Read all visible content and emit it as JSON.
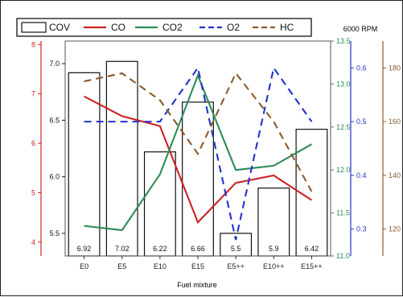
{
  "chart_data": {
    "type": "bar",
    "title": "6000 RPM",
    "xlabel": "Fuel mixture",
    "categories": [
      "E0",
      "E5",
      "E10",
      "E15",
      "E5++",
      "E10++",
      "E15++"
    ],
    "bar_labels": [
      "6.92",
      "7.02",
      "6.22",
      "6.66",
      "5.5",
      "5.9",
      "6.42"
    ],
    "series": [
      {
        "name": "COV",
        "kind": "bar",
        "axis": "cov",
        "values": [
          6.92,
          7.02,
          6.22,
          6.66,
          5.5,
          5.9,
          6.42
        ]
      },
      {
        "name": "CO",
        "kind": "line",
        "axis": "co",
        "color": "#cc2222",
        "dash": "solid",
        "values": [
          6.95,
          6.55,
          6.35,
          4.4,
          5.2,
          5.35,
          4.85
        ]
      },
      {
        "name": "CO2",
        "kind": "line",
        "axis": "co2",
        "color": "#2e8b57",
        "dash": "solid",
        "values": [
          11.35,
          11.3,
          11.95,
          13.1,
          12.0,
          12.05,
          12.3
        ]
      },
      {
        "name": "O2",
        "kind": "line",
        "axis": "o2",
        "color": "#2233cc",
        "dash": "dashed",
        "values": [
          0.5,
          0.5,
          0.5,
          0.6,
          0.28,
          0.6,
          0.5
        ]
      },
      {
        "name": "HC",
        "kind": "line",
        "axis": "hc",
        "color": "#8b5a2b",
        "dash": "dashed",
        "values": [
          175,
          178,
          168,
          148,
          178,
          160,
          134
        ]
      }
    ],
    "axes": {
      "cov": {
        "range": [
          5.3,
          7.2
        ],
        "ticks": [
          "5.5",
          "6.0",
          "6.5",
          "7.0"
        ],
        "color": "#111111"
      },
      "co": {
        "range": [
          3.72,
          8.07
        ],
        "ticks": [
          "4",
          "5",
          "6",
          "7",
          "8"
        ],
        "color": "#cc2222"
      },
      "co2": {
        "range": [
          11.0,
          13.5
        ],
        "ticks": [
          "11.0",
          "11.5",
          "12.0",
          "12.5",
          "13.0",
          "13.5"
        ],
        "color": "#2e8b57"
      },
      "o2": {
        "range": [
          0.25,
          0.65
        ],
        "ticks": [
          "0.3",
          "0.4",
          "0.5",
          "0.6"
        ],
        "color": "#2233cc"
      },
      "hc": {
        "range": [
          110,
          190
        ],
        "ticks": [
          "120",
          "140",
          "160",
          "180"
        ],
        "color": "#8b5a2b"
      }
    },
    "legend_position": "top",
    "grid": false
  }
}
